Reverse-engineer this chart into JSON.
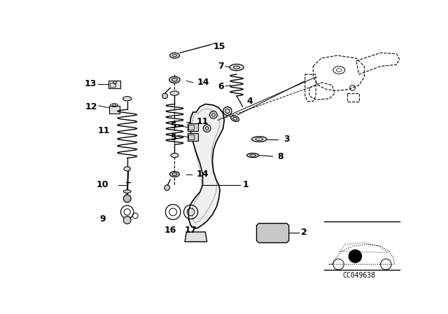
{
  "bg_color": "#ffffff",
  "line_color": "#000000",
  "text_color": "#000000",
  "label_fontsize": 9,
  "code_text": "CC049638",
  "code_fontsize": 7,
  "figsize": [
    6.4,
    4.48
  ],
  "dpi": 100
}
